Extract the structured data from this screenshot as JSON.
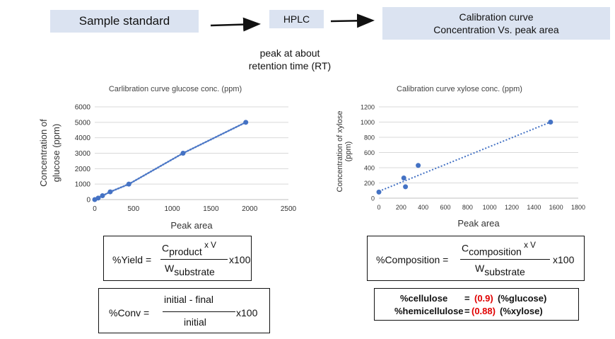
{
  "flow": {
    "sample": "Sample standard",
    "hplc": "HPLC",
    "calib_line1": "Calibration curve",
    "calib_line2": "Concentration Vs. peak area"
  },
  "peak_note": {
    "line1": "peak at about",
    "line2": "retention time (RT)"
  },
  "chart_data": [
    {
      "type": "scatter",
      "title": "Carlibration curve glucose conc. (ppm)",
      "xlabel": "Peak area",
      "ylabel_line1": "Concentration of",
      "ylabel_line2": "glucose (ppm)",
      "xlim": [
        0,
        2500
      ],
      "ylim": [
        0,
        6000
      ],
      "xticks": [
        "0",
        "500",
        "1000",
        "1500",
        "2000",
        "2500"
      ],
      "yticks": [
        "0",
        "1000",
        "2000",
        "3000",
        "4000",
        "5000",
        "6000"
      ],
      "x": [
        0,
        45,
        100,
        200,
        440,
        1140,
        1950
      ],
      "y": [
        0,
        100,
        250,
        500,
        1000,
        3000,
        5000
      ],
      "colors": {
        "marker": "#4472c4"
      }
    },
    {
      "type": "scatter",
      "title": "Calibration curve xylose conc. (ppm)",
      "xlabel": "Peak area",
      "ylabel_line1": "Concentration of xylose",
      "ylabel_line2": "(ppm)",
      "xlim": [
        0,
        1800
      ],
      "ylim": [
        0,
        1200
      ],
      "xticks": [
        "0",
        "200",
        "400",
        "600",
        "800",
        "1000",
        "1200",
        "1400",
        "1600",
        "1800"
      ],
      "yticks": [
        "0",
        "200",
        "400",
        "600",
        "800",
        "1000",
        "1200"
      ],
      "x": [
        0,
        225,
        240,
        355,
        1550
      ],
      "y": [
        80,
        265,
        150,
        430,
        1000
      ],
      "trendline": {
        "x": [
          0,
          1550
        ],
        "y": [
          90,
          1000
        ]
      },
      "colors": {
        "marker": "#4472c4"
      }
    }
  ],
  "formulas": {
    "yield": {
      "lhs": "%Yield =",
      "num_main": "C",
      "num_sub": "product",
      "num_tail": " x V",
      "den_main": "W",
      "den_sub": "substrate",
      "tail": "x100"
    },
    "composition": {
      "lhs": "%Composition =",
      "num_main": "C",
      "num_sub": "composition",
      "num_tail": " x V",
      "den_main": "W",
      "den_sub": "substrate",
      "tail": "x100"
    },
    "conv": {
      "lhs": "%Conv =",
      "num": "initial - final",
      "den": "initial",
      "tail": "x100"
    },
    "cellulose": {
      "label": "%cellulose",
      "eq": "=",
      "factor": "(0.9)",
      "rest": "(%glucose)"
    },
    "hemicellulose": {
      "label": "%hemicellulose",
      "eq": "=",
      "factor": "(0.88)",
      "rest": "(%xylose)"
    }
  }
}
